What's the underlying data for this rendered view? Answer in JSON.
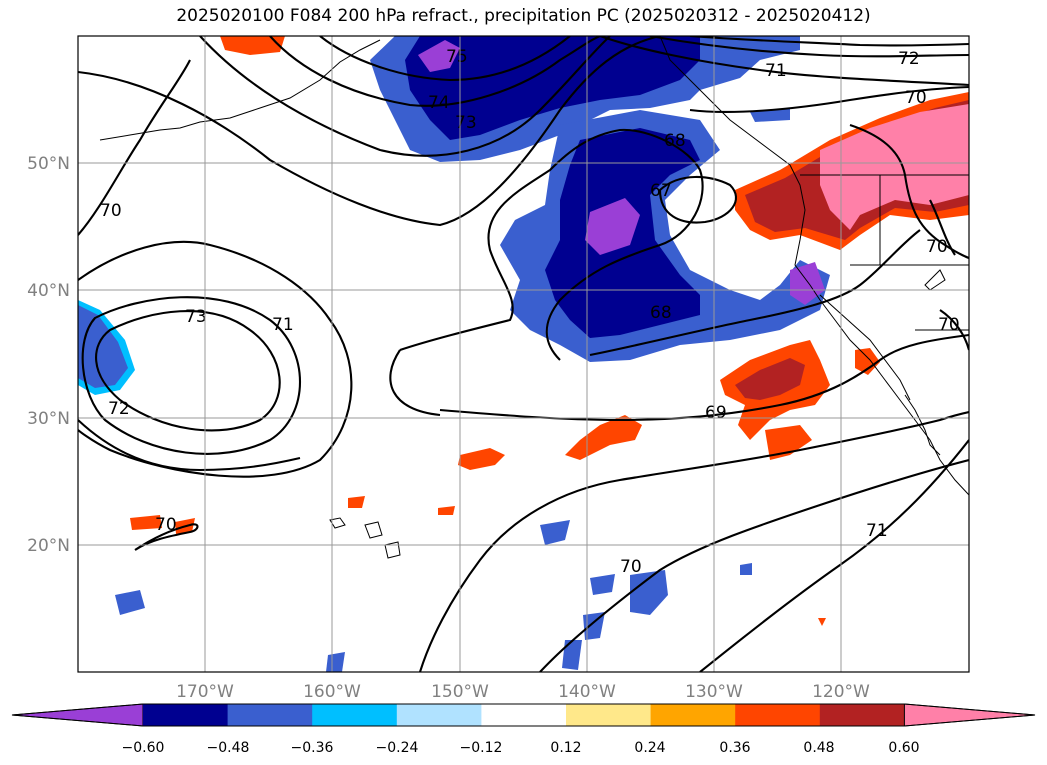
{
  "title": "2025020100 F084 200 hPa refract., precipitation PC (2025020312 - 2025020412)",
  "latitude_labels": [
    "50°N",
    "40°N",
    "30°N",
    "20°N"
  ],
  "longitude_labels": [
    "170°W",
    "160°W",
    "150°W",
    "140°W",
    "130°W",
    "120°W"
  ],
  "contour_labels": [
    {
      "text": "75"
    },
    {
      "text": "74"
    },
    {
      "text": "73"
    },
    {
      "text": "72"
    },
    {
      "text": "71"
    },
    {
      "text": "70"
    },
    {
      "text": "68"
    },
    {
      "text": "67"
    },
    {
      "text": "70"
    },
    {
      "text": "73"
    },
    {
      "text": "71"
    },
    {
      "text": "72"
    },
    {
      "text": "70"
    },
    {
      "text": "68"
    },
    {
      "text": "69"
    },
    {
      "text": "70"
    },
    {
      "text": "70"
    },
    {
      "text": "70"
    },
    {
      "text": "71"
    }
  ],
  "colorbar": {
    "tick_labels": [
      "−0.60",
      "−0.48",
      "−0.36",
      "−0.24",
      "−0.12",
      "0.12",
      "0.24",
      "0.36",
      "0.48",
      "0.60"
    ],
    "colors": [
      "#9a3fd6",
      "#000090",
      "#3a5fcf",
      "#00bfff",
      "#b0e2ff",
      "#ffffff",
      "#ffe88a",
      "#ffa500",
      "#ff4500",
      "#b22222",
      "#ff80a8"
    ]
  },
  "palette": {
    "purple": "#9a3fd6",
    "navy": "#000090",
    "blue": "#3a5fcf",
    "cyan": "#00bfff",
    "lightblue": "#b0e2ff",
    "yellow": "#ffe88a",
    "orange": "#ffa500",
    "redorange": "#ff4500",
    "darkred": "#b22222",
    "pink": "#ff80a8"
  }
}
